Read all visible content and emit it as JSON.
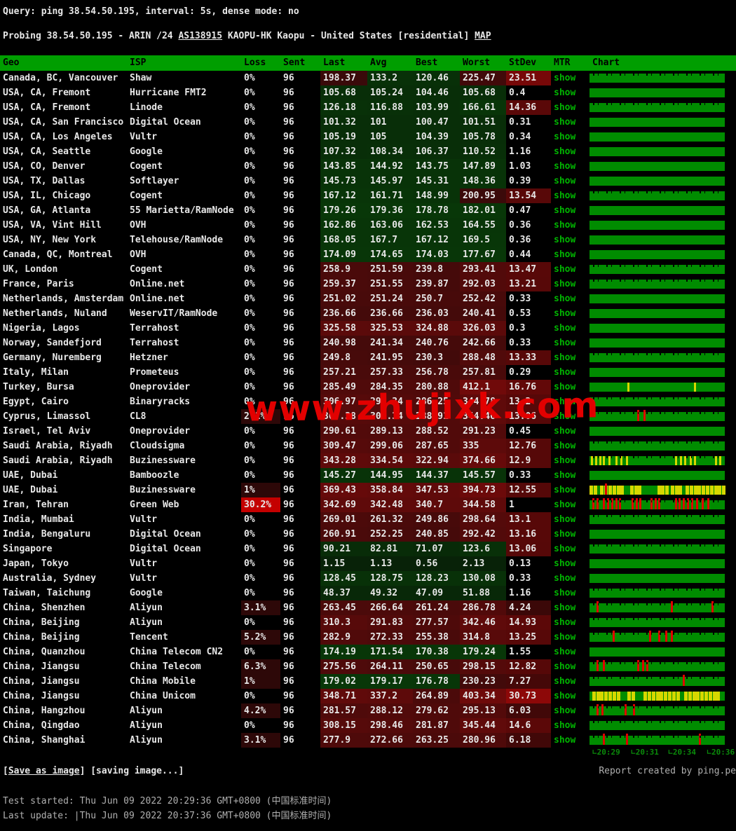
{
  "colors": {
    "header_bg": "#009e00",
    "bar_green": "#008c00",
    "link_green": "#00b400",
    "loss_red": "#c40000",
    "loss_dark": "#2d0808",
    "yellow": "#d7d700",
    "red_stripe": "#e00000",
    "axis_green": "#0a8a0a",
    "text": "#e8e8e8",
    "footer_gray": "#b0b0b0",
    "watermark_red": "#e20000"
  },
  "query_line": "Query: ping 38.54.50.195, interval: 5s, dense mode: no",
  "probing": {
    "prefix": "Probing 38.54.50.195 - ARIN /24 ",
    "as_link": "AS138915",
    "middle": " KAOPU-HK Kaopu - United States [residential] ",
    "map_link": "MAP"
  },
  "watermark": "www.zhujixk.com",
  "table": {
    "columns": [
      "Geo",
      "ISP",
      "Loss",
      "Sent",
      "Last",
      "Avg",
      "Best",
      "Worst",
      "StDev",
      "MTR",
      "Chart"
    ],
    "mtr_label": "show",
    "rows": [
      {
        "geo": "Canada, BC, Vancouver",
        "isp": "Shaw",
        "loss": "0%",
        "sent": "96",
        "last": "198.37",
        "avg": "133.2",
        "best": "120.46",
        "worst": "225.47",
        "stdev": "23.51",
        "chart": {
          "spiky": true
        }
      },
      {
        "geo": "USA, CA, Fremont",
        "isp": "Hurricane FMT2",
        "loss": "0%",
        "sent": "96",
        "last": "105.68",
        "avg": "105.24",
        "best": "104.46",
        "worst": "105.68",
        "stdev": "0.4",
        "chart": {}
      },
      {
        "geo": "USA, CA, Fremont",
        "isp": "Linode",
        "loss": "0%",
        "sent": "96",
        "last": "126.18",
        "avg": "116.88",
        "best": "103.99",
        "worst": "166.61",
        "stdev": "14.36",
        "chart": {
          "spiky": true
        }
      },
      {
        "geo": "USA, CA, San Francisco",
        "isp": "Digital Ocean",
        "loss": "0%",
        "sent": "96",
        "last": "101.32",
        "avg": "101",
        "best": "100.47",
        "worst": "101.51",
        "stdev": "0.31",
        "chart": {}
      },
      {
        "geo": "USA, CA, Los Angeles",
        "isp": "Vultr",
        "loss": "0%",
        "sent": "96",
        "last": "105.19",
        "avg": "105",
        "best": "104.39",
        "worst": "105.78",
        "stdev": "0.34",
        "chart": {}
      },
      {
        "geo": "USA, CA, Seattle",
        "isp": "Google",
        "loss": "0%",
        "sent": "96",
        "last": "107.32",
        "avg": "108.34",
        "best": "106.37",
        "worst": "110.52",
        "stdev": "1.16",
        "chart": {}
      },
      {
        "geo": "USA, CO, Denver",
        "isp": "Cogent",
        "loss": "0%",
        "sent": "96",
        "last": "143.85",
        "avg": "144.92",
        "best": "143.75",
        "worst": "147.89",
        "stdev": "1.03",
        "chart": {}
      },
      {
        "geo": "USA, TX, Dallas",
        "isp": "Softlayer",
        "loss": "0%",
        "sent": "96",
        "last": "145.73",
        "avg": "145.97",
        "best": "145.31",
        "worst": "148.36",
        "stdev": "0.39",
        "chart": {}
      },
      {
        "geo": "USA, IL, Chicago",
        "isp": "Cogent",
        "loss": "0%",
        "sent": "96",
        "last": "167.12",
        "avg": "161.71",
        "best": "148.99",
        "worst": "200.95",
        "stdev": "13.54",
        "chart": {
          "spiky": true
        }
      },
      {
        "geo": "USA, GA, Atlanta",
        "isp": "55 Marietta/RamNode",
        "loss": "0%",
        "sent": "96",
        "last": "179.26",
        "avg": "179.36",
        "best": "178.78",
        "worst": "182.01",
        "stdev": "0.47",
        "chart": {}
      },
      {
        "geo": "USA, VA, Vint Hill",
        "isp": "OVH",
        "loss": "0%",
        "sent": "96",
        "last": "162.86",
        "avg": "163.06",
        "best": "162.53",
        "worst": "164.55",
        "stdev": "0.36",
        "chart": {}
      },
      {
        "geo": "USA, NY, New York",
        "isp": "Telehouse/RamNode",
        "loss": "0%",
        "sent": "96",
        "last": "168.05",
        "avg": "167.7",
        "best": "167.12",
        "worst": "169.5",
        "stdev": "0.36",
        "chart": {}
      },
      {
        "geo": "Canada, QC, Montreal",
        "isp": "OVH",
        "loss": "0%",
        "sent": "96",
        "last": "174.09",
        "avg": "174.65",
        "best": "174.03",
        "worst": "177.67",
        "stdev": "0.44",
        "chart": {}
      },
      {
        "geo": "UK, London",
        "isp": "Cogent",
        "loss": "0%",
        "sent": "96",
        "last": "258.9",
        "avg": "251.59",
        "best": "239.8",
        "worst": "293.41",
        "stdev": "13.47",
        "chart": {
          "spiky": true
        }
      },
      {
        "geo": "France, Paris",
        "isp": "Online.net",
        "loss": "0%",
        "sent": "96",
        "last": "259.37",
        "avg": "251.55",
        "best": "239.87",
        "worst": "292.03",
        "stdev": "13.21",
        "chart": {
          "spiky": true
        }
      },
      {
        "geo": "Netherlands, Amsterdam",
        "isp": "Online.net",
        "loss": "0%",
        "sent": "96",
        "last": "251.02",
        "avg": "251.24",
        "best": "250.7",
        "worst": "252.42",
        "stdev": "0.33",
        "chart": {}
      },
      {
        "geo": "Netherlands, Nuland",
        "isp": "WeservIT/RamNode",
        "loss": "0%",
        "sent": "96",
        "last": "236.66",
        "avg": "236.66",
        "best": "236.03",
        "worst": "240.41",
        "stdev": "0.53",
        "chart": {}
      },
      {
        "geo": "Nigeria, Lagos",
        "isp": "Terrahost",
        "loss": "0%",
        "sent": "96",
        "last": "325.58",
        "avg": "325.53",
        "best": "324.88",
        "worst": "326.03",
        "stdev": "0.3",
        "chart": {}
      },
      {
        "geo": "Norway, Sandefjord",
        "isp": "Terrahost",
        "loss": "0%",
        "sent": "96",
        "last": "240.98",
        "avg": "241.34",
        "best": "240.76",
        "worst": "242.66",
        "stdev": "0.33",
        "chart": {}
      },
      {
        "geo": "Germany, Nuremberg",
        "isp": "Hetzner",
        "loss": "0%",
        "sent": "96",
        "last": "249.8",
        "avg": "241.95",
        "best": "230.3",
        "worst": "288.48",
        "stdev": "13.33",
        "chart": {
          "spiky": true
        }
      },
      {
        "geo": "Italy, Milan",
        "isp": "Prometeus",
        "loss": "0%",
        "sent": "96",
        "last": "257.21",
        "avg": "257.33",
        "best": "256.78",
        "worst": "257.81",
        "stdev": "0.29",
        "chart": {}
      },
      {
        "geo": "Turkey, Bursa",
        "isp": "Oneprovider",
        "loss": "0%",
        "sent": "96",
        "last": "285.49",
        "avg": "284.35",
        "best": "280.88",
        "worst": "412.1",
        "stdev": "16.76",
        "chart": {
          "yellow": [
            0.28,
            0.77
          ]
        }
      },
      {
        "geo": "Egypt, Cairo",
        "isp": "Binaryracks",
        "loss": "0%",
        "sent": "96",
        "last": "306.97",
        "avg": "298.34",
        "best": "286.25",
        "worst": "344.78",
        "stdev": "13.2",
        "chart": {
          "spiky": true
        }
      },
      {
        "geo": "Cyprus, Limassol",
        "isp": "CL8",
        "loss": "2.1%",
        "sent": "96",
        "last": "307.38",
        "avg": "302.34",
        "best": "288.91",
        "worst": "344.46",
        "stdev": "13.06",
        "chart": {
          "spiky": true,
          "red": [
            0.35,
            0.4
          ]
        }
      },
      {
        "geo": "Israel, Tel Aviv",
        "isp": "Oneprovider",
        "loss": "0%",
        "sent": "96",
        "last": "290.61",
        "avg": "289.13",
        "best": "288.52",
        "worst": "291.23",
        "stdev": "0.45",
        "chart": {}
      },
      {
        "geo": "Saudi Arabia, Riyadh",
        "isp": "Cloudsigma",
        "loss": "0%",
        "sent": "96",
        "last": "309.47",
        "avg": "299.06",
        "best": "287.65",
        "worst": "335",
        "stdev": "12.76",
        "chart": {
          "spiky": true
        }
      },
      {
        "geo": "Saudi Arabia, Riyadh",
        "isp": "Buzinessware",
        "loss": "0%",
        "sent": "96",
        "last": "343.28",
        "avg": "334.54",
        "best": "322.94",
        "worst": "374.66",
        "stdev": "12.9",
        "chart": {
          "spiky": true,
          "yellow": [
            0.01,
            0.04,
            0.07,
            0.1,
            0.14,
            0.19,
            0.23,
            0.27,
            0.63,
            0.67,
            0.7,
            0.74,
            0.77,
            0.93,
            0.96
          ]
        }
      },
      {
        "geo": "UAE, Dubai",
        "isp": "Bamboozle",
        "loss": "0%",
        "sent": "96",
        "last": "145.27",
        "avg": "144.95",
        "best": "144.37",
        "worst": "145.57",
        "stdev": "0.33",
        "chart": {}
      },
      {
        "geo": "UAE, Dubai",
        "isp": "Buzinessware",
        "loss": "1%",
        "sent": "96",
        "last": "369.43",
        "avg": "358.84",
        "best": "347.53",
        "worst": "394.73",
        "stdev": "12.55",
        "chart": {
          "wide": true,
          "yellow": [
            0,
            0.03,
            0.08,
            0.11,
            0.14,
            0.17,
            0.2,
            0.23,
            0.3,
            0.33,
            0.36,
            0.5,
            0.53,
            0.56,
            0.6,
            0.63,
            0.66,
            0.71,
            0.74,
            0.77,
            0.8,
            0.83,
            0.86,
            0.89,
            0.92,
            0.95,
            0.98
          ],
          "red": [
            0.115
          ]
        }
      },
      {
        "geo": "Iran, Tehran",
        "isp": "Green Web",
        "loss": "30.2%",
        "sent": "96",
        "last": "342.69",
        "avg": "342.48",
        "best": "340.7",
        "worst": "344.58",
        "stdev": "1",
        "chart": {
          "spiky": true,
          "red": [
            0.02,
            0.05,
            0.1,
            0.13,
            0.16,
            0.19,
            0.22,
            0.31,
            0.34,
            0.37,
            0.45,
            0.48,
            0.51,
            0.63,
            0.66,
            0.69,
            0.72,
            0.75,
            0.79,
            0.83,
            0.87
          ]
        }
      },
      {
        "geo": "India, Mumbai",
        "isp": "Vultr",
        "loss": "0%",
        "sent": "96",
        "last": "269.01",
        "avg": "261.32",
        "best": "249.86",
        "worst": "298.64",
        "stdev": "13.1",
        "chart": {
          "spiky": true
        }
      },
      {
        "geo": "India, Bengaluru",
        "isp": "Digital Ocean",
        "loss": "0%",
        "sent": "96",
        "last": "260.91",
        "avg": "252.25",
        "best": "240.85",
        "worst": "292.42",
        "stdev": "13.16",
        "chart": {}
      },
      {
        "geo": "Singapore",
        "isp": "Digital Ocean",
        "loss": "0%",
        "sent": "96",
        "last": "90.21",
        "avg": "82.81",
        "best": "71.07",
        "worst": "123.6",
        "stdev": "13.06",
        "chart": {
          "spiky": true
        }
      },
      {
        "geo": "Japan, Tokyo",
        "isp": "Vultr",
        "loss": "0%",
        "sent": "96",
        "last": "1.15",
        "avg": "1.13",
        "best": "0.56",
        "worst": "2.13",
        "stdev": "0.13",
        "chart": {}
      },
      {
        "geo": "Australia, Sydney",
        "isp": "Vultr",
        "loss": "0%",
        "sent": "96",
        "last": "128.45",
        "avg": "128.75",
        "best": "128.23",
        "worst": "130.08",
        "stdev": "0.33",
        "chart": {}
      },
      {
        "geo": "Taiwan, Taichung",
        "isp": "Google",
        "loss": "0%",
        "sent": "96",
        "last": "48.37",
        "avg": "49.32",
        "best": "47.09",
        "worst": "51.88",
        "stdev": "1.16",
        "chart": {
          "spiky": true
        }
      },
      {
        "geo": "China, Shenzhen",
        "isp": "Aliyun",
        "loss": "3.1%",
        "sent": "96",
        "last": "263.45",
        "avg": "266.64",
        "best": "261.24",
        "worst": "286.78",
        "stdev": "4.24",
        "chart": {
          "spiky": true,
          "red": [
            0.05,
            0.6,
            0.9
          ]
        }
      },
      {
        "geo": "China, Beijing",
        "isp": "Aliyun",
        "loss": "0%",
        "sent": "96",
        "last": "310.3",
        "avg": "291.83",
        "best": "277.57",
        "worst": "342.46",
        "stdev": "14.93",
        "chart": {
          "spiky": true
        }
      },
      {
        "geo": "China, Beijing",
        "isp": "Tencent",
        "loss": "5.2%",
        "sent": "96",
        "last": "282.9",
        "avg": "272.33",
        "best": "255.38",
        "worst": "314.8",
        "stdev": "13.25",
        "chart": {
          "spiky": true,
          "red": [
            0.17,
            0.44,
            0.51,
            0.56,
            0.6
          ]
        }
      },
      {
        "geo": "China, Quanzhou",
        "isp": "China Telecom CN2",
        "loss": "0%",
        "sent": "96",
        "last": "174.19",
        "avg": "171.54",
        "best": "170.38",
        "worst": "179.24",
        "stdev": "1.55",
        "chart": {}
      },
      {
        "geo": "China, Jiangsu",
        "isp": "China Telecom",
        "loss": "6.3%",
        "sent": "96",
        "last": "275.56",
        "avg": "264.11",
        "best": "250.65",
        "worst": "298.15",
        "stdev": "12.82",
        "chart": {
          "spiky": true,
          "red": [
            0.05,
            0.1,
            0.35,
            0.39,
            0.42
          ]
        }
      },
      {
        "geo": "China, Jiangsu",
        "isp": "China Mobile",
        "loss": "1%",
        "sent": "96",
        "last": "179.02",
        "avg": "179.17",
        "best": "176.78",
        "worst": "230.23",
        "stdev": "7.27",
        "chart": {
          "spiky": true,
          "red": [
            0.69
          ]
        }
      },
      {
        "geo": "China, Jiangsu",
        "isp": "China Unicom",
        "loss": "0%",
        "sent": "96",
        "last": "348.71",
        "avg": "337.2",
        "best": "264.89",
        "worst": "403.34",
        "stdev": "30.73",
        "chart": {
          "wide": true,
          "yellow": [
            0.02,
            0.05,
            0.08,
            0.11,
            0.14,
            0.17,
            0.2,
            0.28,
            0.31,
            0.4,
            0.43,
            0.46,
            0.49,
            0.52,
            0.55,
            0.58,
            0.61,
            0.64,
            0.7,
            0.73,
            0.76,
            0.79,
            0.82,
            0.85,
            0.88,
            0.91,
            0.94
          ]
        }
      },
      {
        "geo": "China, Hangzhou",
        "isp": "Aliyun",
        "loss": "4.2%",
        "sent": "96",
        "last": "281.57",
        "avg": "288.12",
        "best": "279.62",
        "worst": "295.13",
        "stdev": "6.03",
        "chart": {
          "spiky": true,
          "red": [
            0.05,
            0.09,
            0.26,
            0.32
          ]
        }
      },
      {
        "geo": "China, Qingdao",
        "isp": "Aliyun",
        "loss": "0%",
        "sent": "96",
        "last": "308.15",
        "avg": "298.46",
        "best": "281.87",
        "worst": "345.44",
        "stdev": "14.6",
        "chart": {
          "spiky": true
        }
      },
      {
        "geo": "China, Shanghai",
        "isp": "Aliyun",
        "loss": "3.1%",
        "sent": "96",
        "last": "277.9",
        "avg": "272.66",
        "best": "263.25",
        "worst": "280.96",
        "stdev": "6.18",
        "chart": {
          "spiky": true,
          "red": [
            0.1,
            0.27,
            0.81
          ]
        }
      }
    ]
  },
  "chart_axis": {
    "ticks": [
      {
        "label": "∟20:29",
        "pos": 0.0
      },
      {
        "label": "∟20:31",
        "pos": 0.29
      },
      {
        "label": "∟20:34",
        "pos": 0.57
      },
      {
        "label": "∟20:36",
        "pos": 0.86
      }
    ]
  },
  "footer": {
    "bracket_l": "[",
    "save_label": "Save as image",
    "bracket_r": "] ",
    "saving_status": "[saving image...]",
    "credit": "Report created by ping.pe",
    "test_started": "Test started: Thu Jun 09 2022 20:29:36 GMT+0800 (中国标准时间)",
    "last_update": "Last update: |Thu Jun 09 2022 20:37:36 GMT+0800 (中国标准时间)"
  }
}
